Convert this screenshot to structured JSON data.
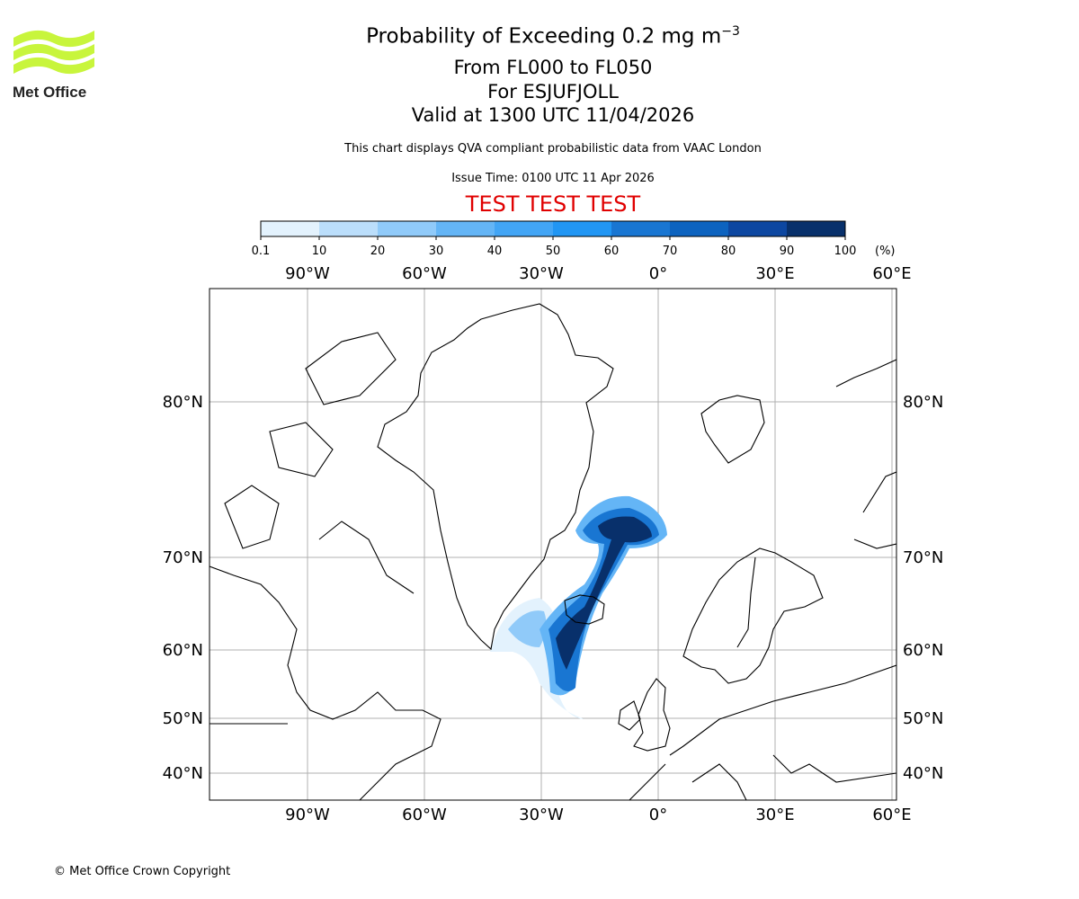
{
  "logo": {
    "text": "Met Office",
    "color": "#c8f53c"
  },
  "title": {
    "line1": "Probability of Exceeding 0.2 mg m",
    "line1_sup": "−3",
    "line2": "From FL000 to FL050",
    "line3": "For ESJUFJOLL",
    "line4": "Valid at 1300 UTC 11/04/2026",
    "description": "This chart displays QVA compliant probabilistic data from VAAC London",
    "issue_time": "Issue Time: 0100 UTC 11 Apr 2026",
    "test_banner": "TEST TEST TEST"
  },
  "footer": {
    "copyright": "© Met Office Crown Copyright"
  },
  "chart_data": {
    "type": "heatmap",
    "title": "Probability of Exceeding 0.2 mg m−3",
    "colorbar": {
      "ticks": [
        "0.1",
        "10",
        "20",
        "30",
        "40",
        "50",
        "60",
        "70",
        "80",
        "90",
        "100"
      ],
      "unit": "(%)",
      "colors": [
        "#e3f2fd",
        "#bbdefb",
        "#90caf9",
        "#64b5f6",
        "#42a5f5",
        "#2196f3",
        "#1976d2",
        "#0d63bf",
        "#0d47a1",
        "#08306b"
      ]
    },
    "lon_ticks": [
      "90°W",
      "60°W",
      "30°W",
      "0°",
      "30°E",
      "60°E"
    ],
    "lon_values": [
      -90,
      -60,
      -30,
      0,
      30,
      60
    ],
    "lat_ticks": [
      "80°N",
      "70°N",
      "60°N",
      "50°N",
      "40°N"
    ],
    "lat_values": [
      80,
      70,
      60,
      50,
      40
    ],
    "grid": true,
    "plume_source": "Iceland (Esjufjoll)",
    "plume_description": "High probability plume extending from Iceland north-east toward ~72N 10W and south-west toward ~55N 25W"
  }
}
